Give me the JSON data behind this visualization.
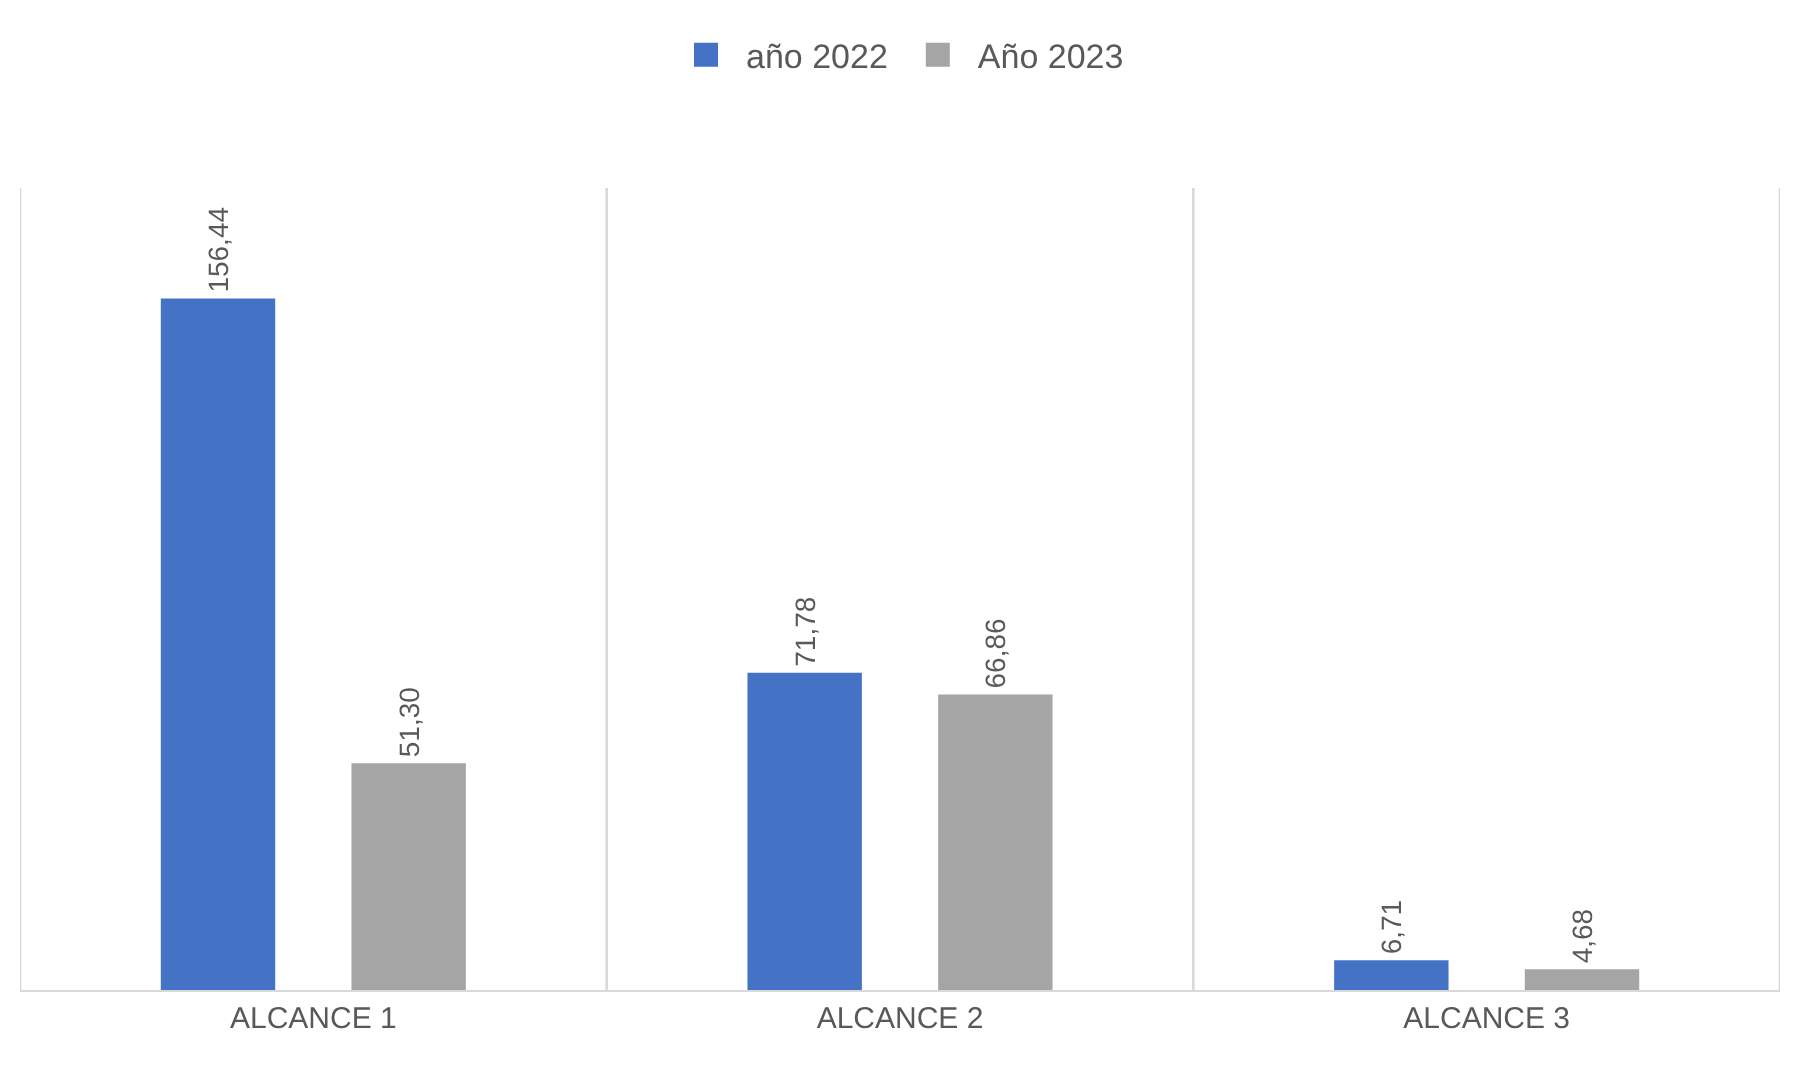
{
  "chart_data": {
    "type": "bar",
    "categories": [
      "ALCANCE 1",
      "ALCANCE 2",
      "ALCANCE 3"
    ],
    "series": [
      {
        "name": "año 2022",
        "color": "#4472c4",
        "values": [
          156.44,
          71.78,
          6.71
        ],
        "value_labels": [
          "156,44",
          "71,78",
          "6,71"
        ]
      },
      {
        "name": "Año 2023",
        "color": "#a5a5a5",
        "values": [
          51.3,
          66.86,
          4.68
        ],
        "value_labels": [
          "51,30",
          "66,86",
          "4,68"
        ]
      }
    ],
    "grid": "x",
    "legend": "top"
  }
}
